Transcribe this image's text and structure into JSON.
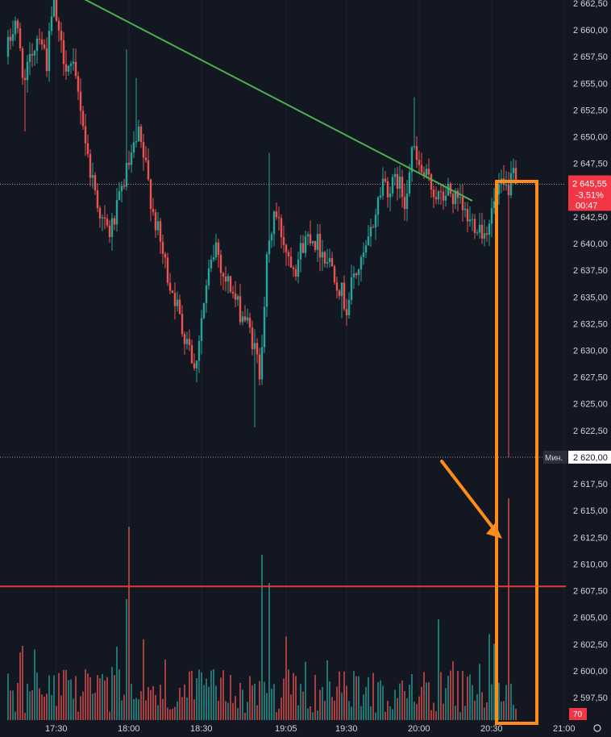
{
  "chart_data": {
    "type": "candlestick",
    "price_axis": {
      "ticks": [
        "2 662,50",
        "2 660,00",
        "2 657,50",
        "2 655,00",
        "2 652,50",
        "2 650,00",
        "2 647,50",
        "2 645,00",
        "2 642,50",
        "2 640,00",
        "2 637,50",
        "2 635,00",
        "2 632,50",
        "2 630,00",
        "2 627,50",
        "2 625,00",
        "2 622,50",
        "2 620,00",
        "2 617,50",
        "2 615,00",
        "2 612,50",
        "2 610,00",
        "2 607,50",
        "2 605,00",
        "2 602,50",
        "2 600,00",
        "2 597,50"
      ],
      "range": [
        2595.0,
        2665.0
      ]
    },
    "time_axis": {
      "labels": [
        {
          "label": "17:30",
          "t": 0
        },
        {
          "label": "18:00",
          "t": 30
        },
        {
          "label": "18:30",
          "t": 60
        },
        {
          "label": "19:05",
          "t": 95
        },
        {
          "label": "19:30",
          "t": 120
        },
        {
          "label": "20:00",
          "t": 150
        },
        {
          "label": "20:30",
          "t": 180
        },
        {
          "label": "21:00",
          "t": 210
        }
      ]
    },
    "price_path": [
      [
        -20,
        2657.5
      ],
      [
        -16,
        2661
      ],
      [
        -12,
        2655
      ],
      [
        -9,
        2658
      ],
      [
        -6,
        2660
      ],
      [
        -3,
        2657
      ],
      [
        0,
        2663
      ],
      [
        2,
        2659
      ],
      [
        5,
        2657
      ],
      [
        8,
        2656
      ],
      [
        11,
        2653
      ],
      [
        14,
        2648
      ],
      [
        17,
        2645
      ],
      [
        20,
        2642
      ],
      [
        23,
        2641
      ],
      [
        26,
        2643
      ],
      [
        29,
        2646
      ],
      [
        32,
        2648
      ],
      [
        35,
        2650
      ],
      [
        38,
        2647
      ],
      [
        41,
        2643
      ],
      [
        44,
        2640
      ],
      [
        47,
        2637
      ],
      [
        50,
        2635
      ],
      [
        53,
        2632
      ],
      [
        56,
        2631
      ],
      [
        58,
        2628
      ],
      [
        61,
        2633
      ],
      [
        64,
        2637
      ],
      [
        67,
        2640
      ],
      [
        70,
        2637
      ],
      [
        73,
        2636
      ],
      [
        76,
        2634
      ],
      [
        79,
        2633
      ],
      [
        82,
        2631
      ],
      [
        85,
        2628
      ],
      [
        88,
        2638
      ],
      [
        91,
        2643
      ],
      [
        94,
        2641
      ],
      [
        97,
        2639
      ],
      [
        100,
        2638
      ],
      [
        103,
        2640
      ],
      [
        106,
        2641
      ],
      [
        109,
        2640
      ],
      [
        112,
        2639
      ],
      [
        115,
        2638
      ],
      [
        118,
        2636
      ],
      [
        121,
        2634
      ],
      [
        124,
        2637
      ],
      [
        127,
        2638
      ],
      [
        130,
        2640
      ],
      [
        133,
        2643
      ],
      [
        136,
        2646
      ],
      [
        139,
        2645
      ],
      [
        142,
        2646
      ],
      [
        145,
        2644
      ],
      [
        148,
        2649
      ],
      [
        151,
        2647
      ],
      [
        154,
        2646
      ],
      [
        157,
        2645
      ],
      [
        160,
        2644
      ],
      [
        163,
        2645
      ],
      [
        166,
        2644
      ],
      [
        169,
        2643
      ],
      [
        172,
        2642
      ],
      [
        175,
        2642
      ],
      [
        178,
        2641
      ],
      [
        181,
        2643
      ],
      [
        184,
        2645
      ],
      [
        187,
        2645
      ],
      [
        190,
        2646
      ]
    ],
    "spike": {
      "t": 187,
      "low": 2620.0
    },
    "current_price": {
      "label": "2 645,55",
      "change": "-3,51%",
      "timer": "00:47",
      "value": 2645.55
    },
    "min_marker": {
      "label": "Мин.",
      "value_label": "2 620,00",
      "value": 2620.0
    },
    "volume_badge": "70",
    "annotations": {
      "trendline": {
        "from": {
          "t": -15,
          "price": 2666
        },
        "to": {
          "t": 172,
          "price": 2644
        },
        "color": "#4caf50"
      },
      "horizontal_line": {
        "price": 2607.9,
        "color": "#e53935"
      },
      "highlight_box": {
        "t_from": 183,
        "t_to": 195,
        "color": "#ff8c1a"
      },
      "arrow": {
        "color": "#ff8c1a",
        "points_to": "spike"
      }
    },
    "colors": {
      "background": "#131722",
      "up": "#26a69a",
      "down": "#ef5350",
      "axis_text": "#d1d4dc",
      "price_badge": "#f23645"
    }
  }
}
